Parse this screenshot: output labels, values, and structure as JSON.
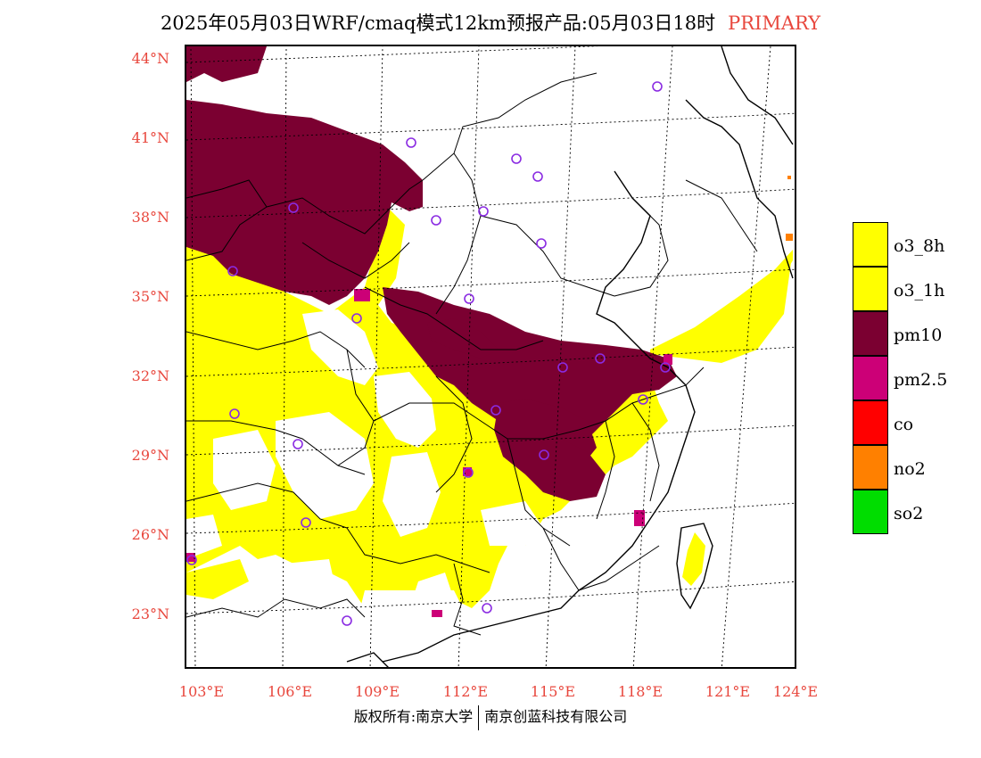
{
  "title": {
    "main": "2025年05月03日WRF/cmaq模式12km预报产品:05月03日18时",
    "tag": "PRIMARY"
  },
  "axes": {
    "lat_labels": [
      "44°N",
      "41°N",
      "38°N",
      "35°N",
      "32°N",
      "29°N",
      "26°N",
      "23°N"
    ],
    "lon_labels": [
      "103°E",
      "106°E",
      "109°E",
      "112°E",
      "115°E",
      "118°E",
      "121°E",
      "124°E"
    ]
  },
  "legend": [
    {
      "label": "o3_8h",
      "color": "#ffff00"
    },
    {
      "label": "o3_1h",
      "color": "#ffff00"
    },
    {
      "label": "pm10",
      "color": "#7b0031"
    },
    {
      "label": "pm2.5",
      "color": "#cc0077"
    },
    {
      "label": "co",
      "color": "#ff0000"
    },
    {
      "label": "no2",
      "color": "#ff8000"
    },
    {
      "label": "so2",
      "color": "#00dd00"
    }
  ],
  "footer": {
    "left": "版权所有:南京大学",
    "right": "南京创蓝科技有限公司"
  }
}
